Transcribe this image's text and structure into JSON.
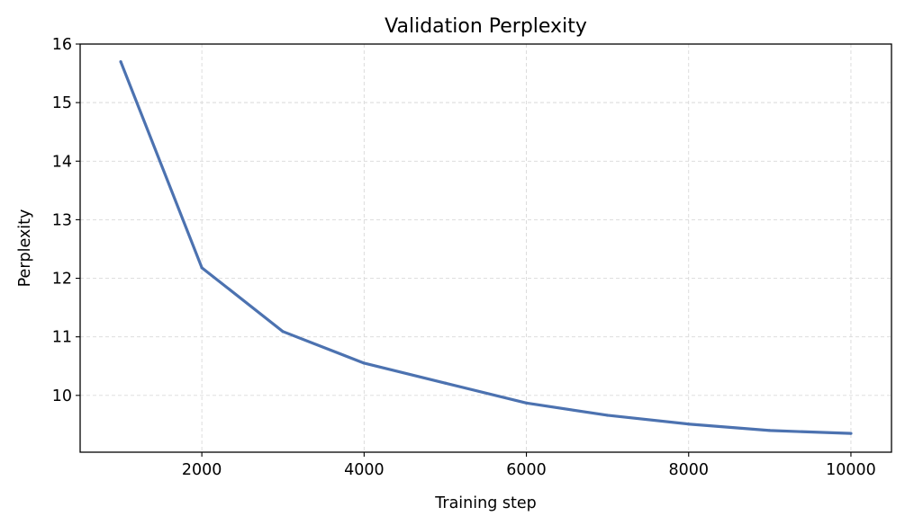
{
  "chart_data": {
    "type": "line",
    "title": "Validation Perplexity",
    "xlabel": "Training step",
    "ylabel": "Perplexity",
    "xlim": [
      500,
      10500
    ],
    "ylim": [
      9.03,
      16.0
    ],
    "xticks": [
      2000,
      4000,
      6000,
      8000,
      10000
    ],
    "yticks": [
      10,
      11,
      12,
      13,
      14,
      15,
      16
    ],
    "grid": true,
    "series": [
      {
        "color": "#4c72b0",
        "x": [
          1000,
          2000,
          3000,
          4000,
          5000,
          6000,
          7000,
          8000,
          9000,
          10000
        ],
        "y": [
          15.7,
          12.18,
          11.09,
          10.55,
          10.21,
          9.87,
          9.66,
          9.51,
          9.4,
          9.35
        ]
      }
    ]
  }
}
